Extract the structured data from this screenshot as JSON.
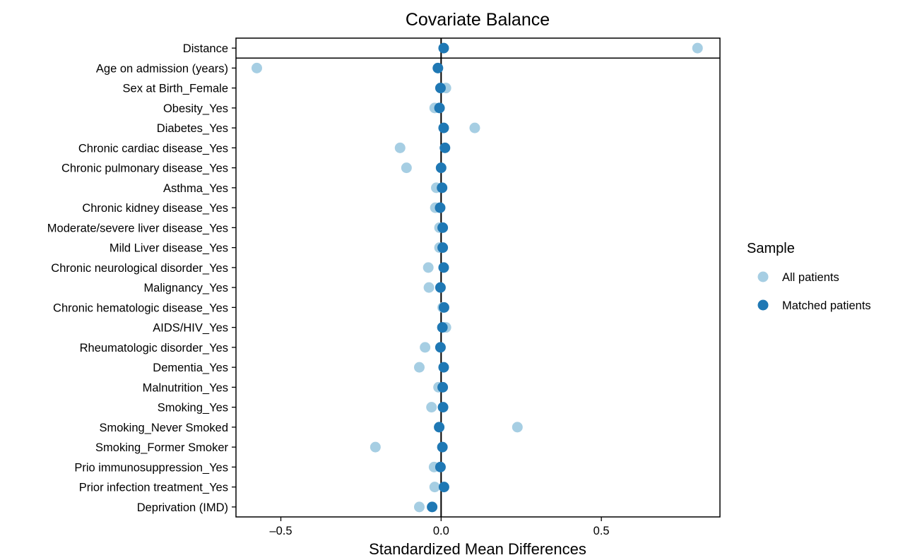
{
  "chart_data": {
    "type": "scatter",
    "title": "Covariate Balance",
    "xlabel": "Standardized Mean Differences",
    "ylabel": "",
    "xlim": [
      -0.64,
      0.87
    ],
    "xticks": [
      -0.5,
      0.0,
      0.5
    ],
    "xtick_labels": [
      "–0.5",
      "0.0",
      "0.5"
    ],
    "reference_line_x": 0,
    "grid": false,
    "legend": {
      "title": "Sample",
      "position": "right"
    },
    "categories": [
      "Distance",
      "Age on admission (years)",
      "Sex at Birth_Female",
      "Obesity_Yes",
      "Diabetes_Yes",
      "Chronic cardiac disease_Yes",
      "Chronic pulmonary disease_Yes",
      "Asthma_Yes",
      "Chronic kidney disease_Yes",
      "Moderate/severe liver disease_Yes",
      "Mild Liver disease_Yes",
      "Chronic neurological disorder_Yes",
      "Malignancy_Yes",
      "Chronic hematologic disease_Yes",
      "AIDS/HIV_Yes",
      "Rheumatologic disorder_Yes",
      "Dementia_Yes",
      "Malnutrition_Yes",
      "Smoking_Yes",
      "Smoking_Never Smoked",
      "Smoking_Former Smoker",
      "Prio immunosuppression_Yes",
      "Prior infection treatment_Yes",
      "Deprivation (IMD)"
    ],
    "separator_after_index": 0,
    "series": [
      {
        "name": "All patients",
        "color": "#a6cee3",
        "values": [
          0.8,
          -0.575,
          0.015,
          -0.02,
          0.105,
          -0.128,
          -0.108,
          -0.015,
          -0.018,
          -0.005,
          -0.005,
          -0.04,
          -0.038,
          0.005,
          0.015,
          -0.05,
          -0.068,
          -0.008,
          -0.03,
          0.238,
          -0.205,
          -0.022,
          -0.02,
          -0.068
        ]
      },
      {
        "name": "Matched patients",
        "color": "#1f78b4",
        "values": [
          0.008,
          -0.01,
          -0.002,
          -0.005,
          0.008,
          0.012,
          0.0,
          0.003,
          -0.003,
          0.005,
          0.005,
          0.008,
          -0.002,
          0.009,
          0.004,
          -0.002,
          0.008,
          0.005,
          0.006,
          -0.006,
          0.004,
          -0.002,
          0.009,
          -0.028
        ]
      }
    ]
  }
}
